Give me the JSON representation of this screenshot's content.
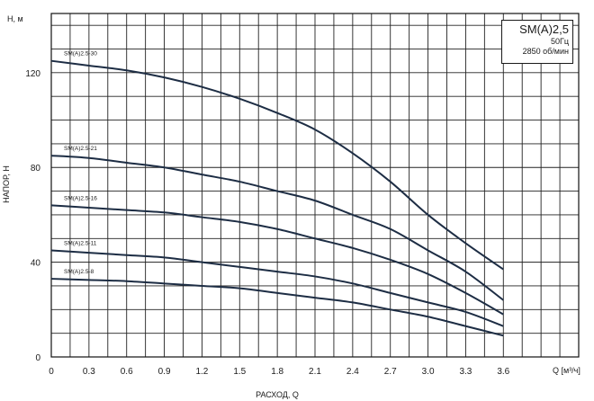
{
  "chart_data": {
    "type": "line",
    "title": "SM(A)2,5",
    "subtitle_lines": [
      "50Гц",
      "2850 об/мин"
    ],
    "ylabel_top": "H, м",
    "ylabel": "НАПОР, Н",
    "xlabel_right": "Q [м³/ч]",
    "xlabel": "РАСХОД, Q",
    "x_ticks": [
      "0",
      "0.3",
      "0.6",
      "0.9",
      "1.2",
      "1.5",
      "1.8",
      "2.1",
      "2.4",
      "2.7",
      "3.0",
      "3.3",
      "3.6"
    ],
    "y_ticks": [
      "0",
      "40",
      "80",
      "120"
    ],
    "xlim": [
      0,
      4.2
    ],
    "ylim": [
      0,
      145
    ],
    "grid": true,
    "series": [
      {
        "name": "SM(A)2.5-30",
        "x": [
          0,
          0.3,
          0.6,
          0.9,
          1.2,
          1.5,
          1.8,
          2.1,
          2.4,
          2.7,
          3.0,
          3.3,
          3.6
        ],
        "y": [
          125,
          123,
          121,
          118,
          114,
          109,
          103,
          96,
          86,
          74,
          60,
          48,
          37
        ]
      },
      {
        "name": "SM(A)2.5-21",
        "x": [
          0,
          0.3,
          0.6,
          0.9,
          1.2,
          1.5,
          1.8,
          2.1,
          2.4,
          2.7,
          3.0,
          3.3,
          3.6
        ],
        "y": [
          85,
          84,
          82,
          80,
          77,
          74,
          70,
          66,
          60,
          54,
          45,
          36,
          24
        ]
      },
      {
        "name": "SM(A)2.5-16",
        "x": [
          0,
          0.3,
          0.6,
          0.9,
          1.2,
          1.5,
          1.8,
          2.1,
          2.4,
          2.7,
          3.0,
          3.3,
          3.6
        ],
        "y": [
          64,
          63,
          62,
          61,
          59,
          57,
          54,
          50,
          46,
          41,
          35,
          27,
          18
        ]
      },
      {
        "name": "SM(A)2.5-11",
        "x": [
          0,
          0.3,
          0.6,
          0.9,
          1.2,
          1.5,
          1.8,
          2.1,
          2.4,
          2.7,
          3.0,
          3.3,
          3.6
        ],
        "y": [
          45,
          44,
          43,
          42,
          40,
          38,
          36,
          34,
          31,
          27,
          23,
          19,
          13
        ]
      },
      {
        "name": "SM(A)2.5-8",
        "x": [
          0,
          0.3,
          0.6,
          0.9,
          1.2,
          1.5,
          1.8,
          2.1,
          2.4,
          2.7,
          3.0,
          3.3,
          3.6
        ],
        "y": [
          33,
          32.5,
          32,
          31,
          30,
          29,
          27,
          25,
          23,
          20,
          17,
          13,
          9
        ]
      }
    ]
  }
}
